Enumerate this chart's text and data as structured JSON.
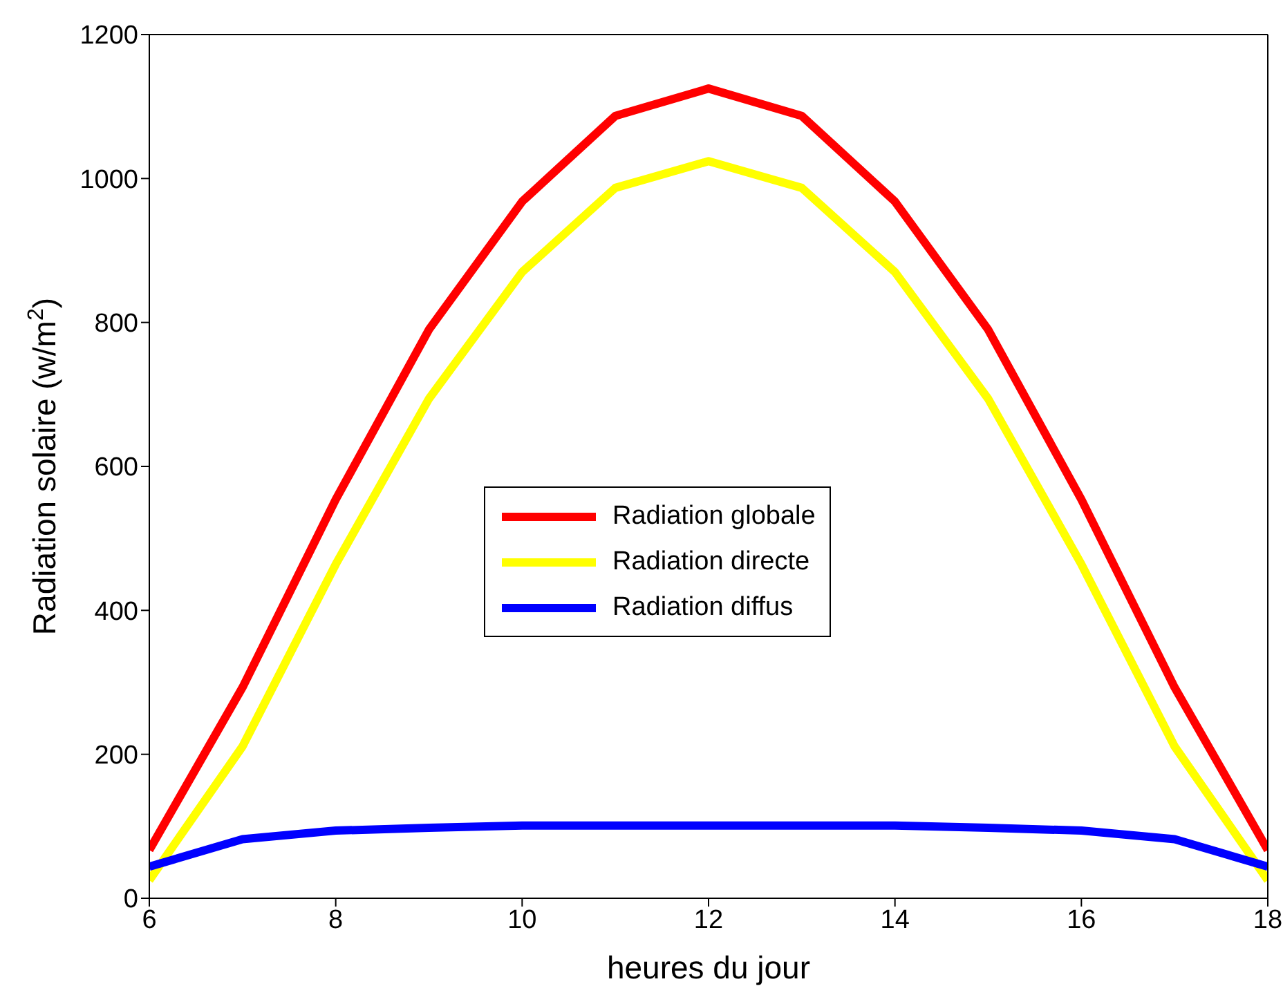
{
  "chart_data": {
    "type": "line",
    "xlabel": "heures du jour",
    "ylabel": "Radiation solaire (w/m$^{2}$)",
    "x": [
      6,
      7,
      8,
      9,
      10,
      11,
      12,
      13,
      14,
      15,
      16,
      17,
      18
    ],
    "series": [
      {
        "name": "Radiation globale",
        "color": "#ff0000",
        "values": [
          67,
          293,
          554,
          790,
          968,
          1087,
          1125,
          1087,
          968,
          790,
          554,
          293,
          67
        ]
      },
      {
        "name": "Radiation directe",
        "color": "#ffff00",
        "values": [
          25,
          211,
          464,
          694,
          870,
          987,
          1024,
          987,
          870,
          694,
          464,
          211,
          25
        ]
      },
      {
        "name": "Radiation diffus",
        "color": "#0000ff",
        "values": [
          44,
          82,
          94,
          98,
          101,
          101,
          101,
          101,
          101,
          98,
          94,
          82,
          44
        ]
      }
    ],
    "xlim": [
      6,
      18
    ],
    "xticks": [
      6,
      8,
      10,
      12,
      14,
      16,
      18
    ],
    "ylim": [
      0,
      1200
    ],
    "yticks": [
      0,
      200,
      400,
      600,
      800,
      1000,
      1200
    ],
    "grid": false,
    "legend": "center",
    "marker": "none",
    "line_style": "solid"
  }
}
